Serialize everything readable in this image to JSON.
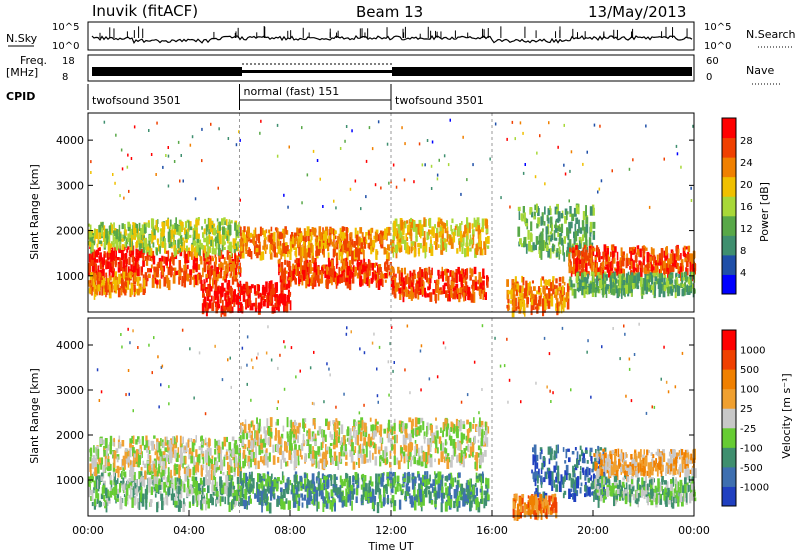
{
  "header": {
    "station": "Inuvik (fitACF)",
    "beam": "Beam 13",
    "date": "13/May/2013"
  },
  "panels": {
    "nsky_label": "N.Sky",
    "nsky_ticks": [
      "10^5",
      "10^0"
    ],
    "nsearch_label": "N.Search",
    "freq_label_1": "Freq.",
    "freq_label_2": "[MHz]",
    "freq_ticks": [
      "18",
      "8"
    ],
    "nave_label": "Nave",
    "nave_ticks": [
      "60",
      "0"
    ],
    "cpid_label": "CPID",
    "cpid_segments": [
      {
        "name": "twofsound 3501",
        "start_h": 0,
        "end_h": 6
      },
      {
        "name": "normal (fast) 151",
        "start_h": 6,
        "end_h": 12
      },
      {
        "name": "twofsound 3501",
        "start_h": 12,
        "end_h": 24
      }
    ]
  },
  "colors": {
    "power": [
      "#0000ff",
      "#1f4fa8",
      "#3f8f6f",
      "#58a848",
      "#a8d838",
      "#f0c000",
      "#f08000",
      "#f04000",
      "#ff0000"
    ],
    "velocity": [
      "#2040c0",
      "#3e6fb0",
      "#3f8f6f",
      "#66cc33",
      "#c8c8c8",
      "#f0a030",
      "#f08000",
      "#f04000",
      "#ff0000"
    ]
  },
  "chart_data": [
    {
      "type": "heatmap",
      "name": "power",
      "xlabel": "",
      "ylabel": "Slant Range [km]",
      "xlim": [
        0,
        24
      ],
      "ylim": [
        200,
        4600
      ],
      "yticks": [
        1000,
        2000,
        3000,
        4000
      ],
      "colorbar": {
        "label": "Power [dB]",
        "ticks": [
          "28",
          "24",
          "20",
          "16",
          "12",
          "8",
          "4"
        ]
      },
      "bands": [
        {
          "t": [
            0,
            2.2
          ],
          "range": [
            1100,
            1700
          ],
          "level": 8
        },
        {
          "t": [
            0,
            2.2
          ],
          "range": [
            700,
            1100
          ],
          "level": 6
        },
        {
          "t": [
            0,
            2.2
          ],
          "range": [
            1700,
            2200
          ],
          "level": 4
        },
        {
          "t": [
            2.2,
            6.0
          ],
          "range": [
            900,
            1600
          ],
          "level": 7
        },
        {
          "t": [
            2.2,
            6.0
          ],
          "range": [
            1600,
            2300
          ],
          "level": 4
        },
        {
          "t": [
            4.5,
            8.0
          ],
          "range": [
            300,
            900
          ],
          "level": 8
        },
        {
          "t": [
            6.0,
            12.0
          ],
          "range": [
            1500,
            2100
          ],
          "level": 6
        },
        {
          "t": [
            7.5,
            12.0
          ],
          "range": [
            900,
            1400
          ],
          "level": 7
        },
        {
          "t": [
            12.0,
            15.8
          ],
          "range": [
            600,
            1200
          ],
          "level": 7
        },
        {
          "t": [
            12.0,
            15.8
          ],
          "range": [
            1600,
            2300
          ],
          "level": 5
        },
        {
          "t": [
            16.5,
            19.0
          ],
          "range": [
            300,
            1000
          ],
          "level": 6
        },
        {
          "t": [
            17.0,
            20.0
          ],
          "range": [
            1500,
            2600
          ],
          "level": 3
        },
        {
          "t": [
            19.0,
            24.0
          ],
          "range": [
            1100,
            1700
          ],
          "level": 7
        },
        {
          "t": [
            19.0,
            24.0
          ],
          "range": [
            700,
            1100
          ],
          "level": 3
        }
      ]
    },
    {
      "type": "heatmap",
      "name": "velocity",
      "xlabel": "Time UT",
      "ylabel": "Slant Range [km]",
      "xlim": [
        0,
        24
      ],
      "ylim": [
        200,
        4600
      ],
      "yticks": [
        1000,
        2000,
        3000,
        4000
      ],
      "xticks": [
        "00:00",
        "04:00",
        "08:00",
        "12:00",
        "16:00",
        "20:00",
        "00:00"
      ],
      "colorbar": {
        "label": "Velocity [m s⁻¹]",
        "ticks": [
          "1000",
          "500",
          "100",
          "25",
          "-25",
          "-100",
          "-500",
          "-1000"
        ]
      },
      "bands": [
        {
          "t": [
            0,
            6.0
          ],
          "range": [
            500,
            1200
          ],
          "level": 3
        },
        {
          "t": [
            0,
            6.0
          ],
          "range": [
            1200,
            2000
          ],
          "level": 4
        },
        {
          "t": [
            6.0,
            12.0
          ],
          "range": [
            500,
            1200
          ],
          "level": 2
        },
        {
          "t": [
            6.0,
            15.8
          ],
          "range": [
            1400,
            2400
          ],
          "level": 4
        },
        {
          "t": [
            12.0,
            15.8
          ],
          "range": [
            500,
            1200
          ],
          "level": 2
        },
        {
          "t": [
            17.5,
            20.5
          ],
          "range": [
            700,
            1800
          ],
          "level": 1
        },
        {
          "t": [
            20.0,
            24.0
          ],
          "range": [
            1200,
            1700
          ],
          "level": 5
        },
        {
          "t": [
            20.0,
            24.0
          ],
          "range": [
            600,
            1100
          ],
          "level": 3
        },
        {
          "t": [
            16.8,
            18.5
          ],
          "range": [
            300,
            700
          ],
          "level": 6
        }
      ]
    }
  ]
}
